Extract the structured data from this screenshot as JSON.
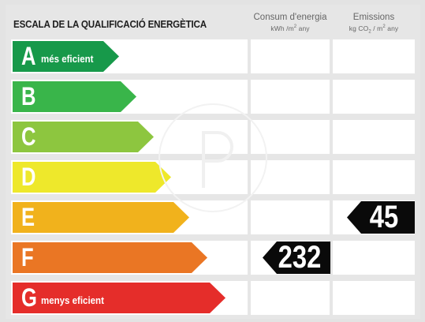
{
  "title": "ESCALA DE LA QUALIFICACIÓ ENERGÈTICA",
  "columns": {
    "consum": {
      "heading": "Consum d'energia",
      "unit_prefix": "kWh /m",
      "unit_exp": "2",
      "unit_suffix": " any"
    },
    "emissions": {
      "heading": "Emissions",
      "unit_prefix": "kg CO",
      "unit_sub": "2",
      "unit_mid": " / m",
      "unit_exp": "2",
      "unit_suffix": " any"
    }
  },
  "rating_scale": [
    {
      "letter": "A",
      "label": "més eficient",
      "color": "#17994a"
    },
    {
      "letter": "B",
      "label": "",
      "color": "#39b54a"
    },
    {
      "letter": "C",
      "label": "",
      "color": "#8dc63f"
    },
    {
      "letter": "D",
      "label": "",
      "color": "#eee82b"
    },
    {
      "letter": "E",
      "label": "",
      "color": "#f1b21c"
    },
    {
      "letter": "F",
      "label": "",
      "color": "#ea7624"
    },
    {
      "letter": "G",
      "label": "menys eficient",
      "color": "#e52d2a"
    }
  ],
  "results": {
    "consum": {
      "value": "232",
      "rating": "F"
    },
    "emissions": {
      "value": "45",
      "rating": "E"
    }
  }
}
